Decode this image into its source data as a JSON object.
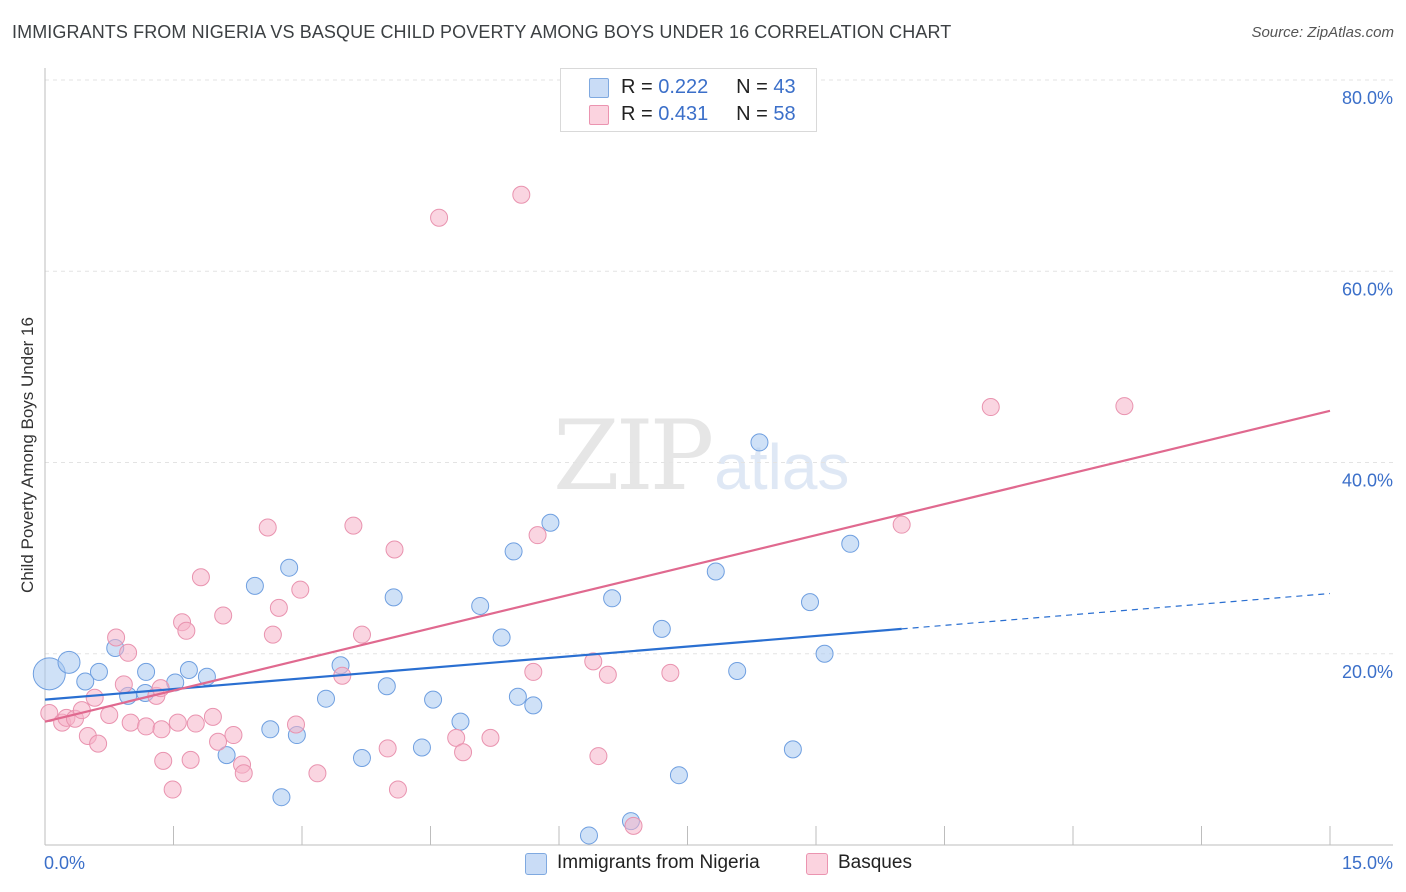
{
  "header": {
    "title": "IMMIGRANTS FROM NIGERIA VS BASQUE CHILD POVERTY AMONG BOYS UNDER 16 CORRELATION CHART",
    "source": "Source: ZipAtlas.com"
  },
  "watermark": {
    "zip": "ZIP",
    "atlas": "atlas"
  },
  "legend": {
    "rows": [
      {
        "r_label": "R =",
        "r_value": "0.222",
        "n_label": "N =",
        "n_value": "43",
        "color": "#a8c8f0"
      },
      {
        "r_label": "R =",
        "r_value": "0.431",
        "n_label": "N =",
        "n_value": "58",
        "color": "#f5b3c8"
      }
    ]
  },
  "bottom_legend": [
    {
      "label": "Immigrants from Nigeria",
      "color": "#a8c8f0"
    },
    {
      "label": "Basques",
      "color": "#f5b3c8"
    }
  ],
  "chart_data": {
    "type": "scatter",
    "ylabel": "Child Poverty Among Boys Under 16",
    "xlim": [
      0,
      15
    ],
    "ylim": [
      0,
      80
    ],
    "x_tick_labels": [
      "0.0%",
      "15.0%"
    ],
    "y_tick_labels": [
      "20.0%",
      "40.0%",
      "60.0%",
      "80.0%"
    ],
    "y_ticks": [
      20,
      40,
      60,
      80
    ],
    "grid": true,
    "colors": {
      "nigeria_fill": "#a8c8f0",
      "nigeria_line": "#2a6fd1",
      "basque_fill": "#f5b3c8",
      "basque_line": "#e0698f",
      "tick_text": "#3b6fc9"
    },
    "series": [
      {
        "name": "Immigrants from Nigeria",
        "points": [
          [
            0.05,
            17.9
          ],
          [
            0.28,
            19.1
          ],
          [
            0.47,
            17.1
          ],
          [
            0.63,
            18.1
          ],
          [
            0.82,
            20.6
          ],
          [
            0.97,
            15.6
          ],
          [
            1.18,
            18.1
          ],
          [
            1.17,
            15.9
          ],
          [
            1.52,
            17.0
          ],
          [
            1.68,
            18.3
          ],
          [
            1.89,
            17.6
          ],
          [
            2.12,
            9.4
          ],
          [
            2.45,
            27.1
          ],
          [
            2.63,
            12.1
          ],
          [
            2.76,
            5.0
          ],
          [
            2.94,
            11.5
          ],
          [
            3.28,
            15.3
          ],
          [
            3.45,
            18.8
          ],
          [
            3.7,
            9.1
          ],
          [
            3.99,
            16.6
          ],
          [
            4.07,
            25.9
          ],
          [
            4.4,
            10.2
          ],
          [
            4.53,
            15.2
          ],
          [
            4.85,
            12.9
          ],
          [
            5.08,
            25.0
          ],
          [
            5.33,
            21.7
          ],
          [
            5.52,
            15.5
          ],
          [
            5.7,
            14.6
          ],
          [
            5.9,
            33.7
          ],
          [
            5.47,
            30.7
          ],
          [
            6.35,
            1.0
          ],
          [
            6.62,
            25.8
          ],
          [
            6.84,
            2.5
          ],
          [
            7.2,
            22.6
          ],
          [
            7.4,
            7.3
          ],
          [
            7.83,
            28.6
          ],
          [
            8.08,
            18.2
          ],
          [
            8.34,
            42.1
          ],
          [
            8.73,
            10.0
          ],
          [
            8.93,
            25.4
          ],
          [
            9.1,
            20.0
          ],
          [
            9.4,
            31.5
          ],
          [
            2.85,
            29.0
          ]
        ],
        "trend": {
          "x1": 0,
          "y1": 15.2,
          "x2": 10.0,
          "y2": 22.6,
          "dash_x2": 15.0,
          "dash_y2": 26.3
        }
      },
      {
        "name": "Basques",
        "points": [
          [
            0.05,
            13.8
          ],
          [
            0.2,
            12.8
          ],
          [
            0.25,
            13.3
          ],
          [
            0.35,
            13.2
          ],
          [
            0.43,
            14.1
          ],
          [
            0.5,
            11.4
          ],
          [
            0.58,
            15.4
          ],
          [
            0.62,
            10.6
          ],
          [
            0.75,
            13.6
          ],
          [
            0.83,
            21.7
          ],
          [
            0.92,
            16.8
          ],
          [
            0.97,
            20.1
          ],
          [
            1.0,
            12.8
          ],
          [
            1.18,
            12.4
          ],
          [
            1.3,
            15.6
          ],
          [
            1.35,
            16.4
          ],
          [
            1.36,
            12.1
          ],
          [
            1.38,
            8.8
          ],
          [
            1.49,
            5.8
          ],
          [
            1.55,
            12.8
          ],
          [
            1.6,
            23.3
          ],
          [
            1.65,
            22.4
          ],
          [
            1.7,
            8.9
          ],
          [
            1.76,
            12.7
          ],
          [
            1.82,
            28.0
          ],
          [
            1.96,
            13.4
          ],
          [
            2.02,
            10.8
          ],
          [
            2.08,
            24.0
          ],
          [
            2.2,
            11.5
          ],
          [
            2.3,
            8.4
          ],
          [
            2.32,
            7.5
          ],
          [
            2.6,
            33.2
          ],
          [
            2.66,
            22.0
          ],
          [
            2.73,
            24.8
          ],
          [
            2.93,
            12.6
          ],
          [
            2.98,
            26.7
          ],
          [
            3.18,
            7.5
          ],
          [
            3.47,
            17.7
          ],
          [
            3.6,
            33.4
          ],
          [
            3.7,
            22.0
          ],
          [
            4.0,
            10.1
          ],
          [
            4.08,
            30.9
          ],
          [
            4.12,
            5.8
          ],
          [
            4.6,
            65.6
          ],
          [
            4.8,
            11.2
          ],
          [
            4.88,
            9.7
          ],
          [
            5.2,
            11.2
          ],
          [
            5.56,
            68.0
          ],
          [
            5.7,
            18.1
          ],
          [
            5.75,
            32.4
          ],
          [
            6.4,
            19.2
          ],
          [
            6.46,
            9.3
          ],
          [
            6.57,
            17.8
          ],
          [
            6.87,
            2.0
          ],
          [
            7.3,
            18.0
          ],
          [
            10.0,
            33.5
          ],
          [
            11.04,
            45.8
          ],
          [
            12.6,
            45.9
          ]
        ],
        "trend": {
          "x1": 0,
          "y1": 12.9,
          "x2": 15.0,
          "y2": 45.4
        }
      }
    ]
  }
}
